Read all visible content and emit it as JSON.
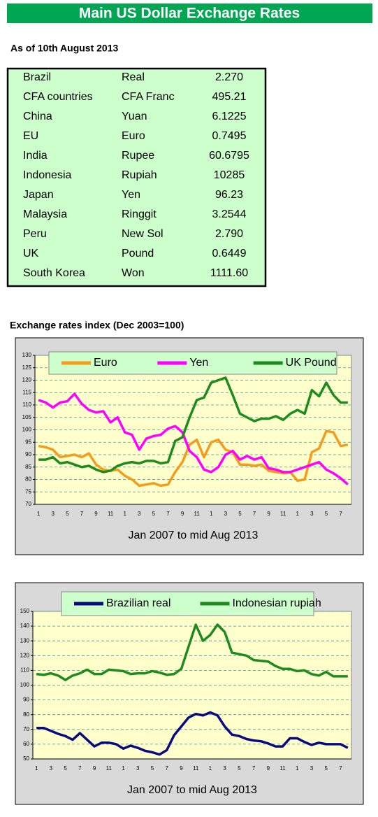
{
  "header": {
    "title": "Main US Dollar Exchange Rates",
    "date": "As of 10th August 2013"
  },
  "table": {
    "rows": [
      [
        "Brazil",
        "Real",
        "2.270"
      ],
      [
        "CFA countries",
        "CFA Franc",
        "495.21"
      ],
      [
        "China",
        "Yuan",
        "6.1225"
      ],
      [
        "EU",
        "Euro",
        "0.7495"
      ],
      [
        "India",
        "Rupee",
        "60.6795"
      ],
      [
        "Indonesia",
        "Rupiah",
        "10285"
      ],
      [
        "Japan",
        "Yen",
        "96.23"
      ],
      [
        "Malaysia",
        "Ringgit",
        "3.2544"
      ],
      [
        "Peru",
        "New Sol",
        "2.790"
      ],
      [
        "UK",
        "Pound",
        "0.6449"
      ],
      [
        "South Korea",
        "Won",
        "1111.60"
      ]
    ]
  },
  "section_title": "Exchange rates index (Dec 2003=100)",
  "chart_data": [
    {
      "type": "line",
      "xlabel": "Jan 2007 to mid Aug 2013",
      "categories": [
        "1",
        null,
        "3",
        null,
        "5",
        null,
        "7",
        null,
        "9",
        null,
        "11",
        null,
        "1",
        null,
        "3",
        null,
        "5",
        null,
        "7",
        null,
        "9",
        null,
        "11",
        null,
        "1",
        null,
        "3",
        null,
        "5",
        null,
        "7",
        null,
        "9",
        null,
        "11",
        null,
        "1",
        null,
        "3",
        null,
        "5",
        null,
        "7",
        null
      ],
      "ylim": [
        70,
        130
      ],
      "yticks": [
        70,
        75,
        80,
        85,
        90,
        95,
        100,
        105,
        110,
        115,
        120,
        125,
        130
      ],
      "grid": true,
      "legend": "top",
      "series": [
        {
          "name": "Euro",
          "color": "#f39c1e",
          "values": [
            93.5,
            93,
            92,
            89,
            89.5,
            90,
            89,
            90.5,
            86,
            84,
            83.5,
            84,
            81.5,
            80,
            77.5,
            78,
            78.5,
            77.5,
            78,
            83,
            87,
            94,
            96,
            89,
            95,
            96,
            92,
            91,
            86,
            86,
            85.5,
            86,
            83.5,
            83,
            82.5,
            83,
            79.5,
            80,
            91,
            92.5,
            99.5,
            99,
            93.5,
            94
          ]
        },
        {
          "name": "Yen",
          "color": "#ff00ff",
          "values": [
            112,
            111,
            109,
            111,
            111.5,
            114.5,
            110.5,
            108,
            107,
            107.5,
            103,
            105,
            99,
            98,
            92,
            96.5,
            97.5,
            98,
            100.5,
            101.5,
            99,
            91.5,
            89,
            84,
            83,
            85,
            90,
            91.5,
            88,
            89.5,
            88,
            89,
            84.5,
            84,
            83,
            83,
            84,
            85,
            86,
            87,
            84,
            82.5,
            80.5,
            78
          ]
        },
        {
          "name": "UK Pound",
          "color": "#1f8a1f",
          "values": [
            88,
            88,
            89,
            86.5,
            87,
            86,
            85,
            85.5,
            84,
            83,
            83.5,
            85.5,
            86.5,
            87,
            86.5,
            87.5,
            87.5,
            86.5,
            87,
            95.5,
            97,
            105,
            112,
            113,
            119,
            120,
            121,
            114,
            106.5,
            105,
            103.5,
            104.5,
            104.5,
            105.5,
            104,
            106.5,
            108,
            106.5,
            116,
            113.5,
            119,
            114,
            111,
            111
          ]
        }
      ]
    },
    {
      "type": "line",
      "xlabel": "Jan 2007 to mid Aug 2013",
      "categories": [
        "1",
        null,
        "3",
        null,
        "5",
        null,
        "7",
        null,
        "9",
        null,
        "11",
        null,
        "1",
        null,
        "3",
        null,
        "5",
        null,
        "7",
        null,
        "9",
        null,
        "11",
        null,
        "1",
        null,
        "3",
        null,
        "5",
        null,
        "7",
        null,
        "9",
        null,
        "11",
        null,
        "1",
        null,
        "3",
        null,
        "5",
        null,
        "7",
        null
      ],
      "ylim": [
        50,
        150
      ],
      "yticks": [
        50,
        60,
        70,
        80,
        90,
        100,
        110,
        120,
        130,
        140,
        150
      ],
      "grid": true,
      "legend": "top",
      "series": [
        {
          "name": "Brazilian real",
          "color": "#0a0a80",
          "values": [
            71,
            71,
            69,
            67,
            65.5,
            63,
            67.5,
            63,
            58.5,
            61,
            61,
            60,
            57,
            59,
            57.5,
            55.5,
            54.5,
            53,
            56,
            66,
            72,
            78,
            80.5,
            79.5,
            81.5,
            79.5,
            72,
            66.5,
            65.5,
            63.5,
            62.5,
            62,
            60.5,
            58.5,
            58.5,
            64,
            64,
            61.5,
            59.5,
            61,
            60,
            60,
            60,
            57.5
          ]
        },
        {
          "name": "Indonesian rupiah",
          "color": "#1f8a1f",
          "values": [
            107.5,
            107,
            108,
            106.5,
            103.5,
            106.5,
            108,
            110.5,
            107.5,
            107.5,
            110.5,
            110,
            109.5,
            107.5,
            108,
            108,
            109.5,
            108.5,
            107,
            107.5,
            111,
            126,
            141,
            130,
            134,
            141,
            136,
            122,
            121,
            120,
            117,
            116.5,
            116,
            113,
            111,
            111,
            109.5,
            110,
            107.5,
            106.5,
            109,
            106,
            106,
            106
          ]
        }
      ]
    }
  ]
}
